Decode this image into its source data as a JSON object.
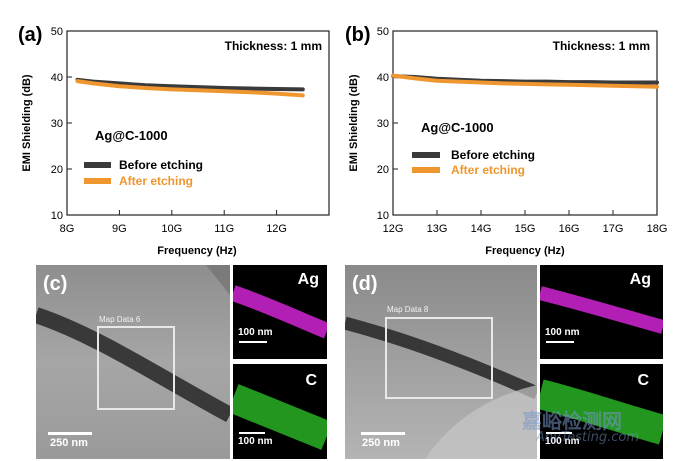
{
  "chart_data": [
    {
      "panel": "(a)",
      "type": "line",
      "annotation_top": "Thickness: 1 mm",
      "annotation_sample": "Ag@C-1000",
      "xlabel": "Frequency (Hz)",
      "ylabel": "EMI Shielding (dB)",
      "xlim": [
        8,
        13
      ],
      "ylim": [
        10,
        50
      ],
      "xticks": [
        8,
        9,
        10,
        11,
        12
      ],
      "xticklabels": [
        "8G",
        "9G",
        "10G",
        "11G",
        "12G"
      ],
      "yticks": [
        10,
        20,
        30,
        40,
        50
      ],
      "yticklabels": [
        "10",
        "20",
        "30",
        "40",
        "50"
      ],
      "grid": false,
      "legend_placement": "center-left",
      "series": [
        {
          "name": "Before etching",
          "color": "#3a3a3a",
          "x": [
            8.2,
            8.5,
            9.0,
            9.5,
            10.0,
            10.5,
            11.0,
            11.5,
            12.0,
            12.5
          ],
          "y": [
            39.4,
            39.0,
            38.6,
            38.2,
            38.0,
            37.8,
            37.6,
            37.5,
            37.4,
            37.3
          ]
        },
        {
          "name": "After etching",
          "color": "#f0962e",
          "x": [
            8.2,
            8.5,
            9.0,
            9.5,
            10.0,
            10.5,
            11.0,
            11.5,
            12.0,
            12.5
          ],
          "y": [
            39.1,
            38.6,
            38.0,
            37.6,
            37.3,
            37.1,
            36.9,
            36.7,
            36.4,
            36.0
          ]
        }
      ]
    },
    {
      "panel": "(b)",
      "type": "line",
      "annotation_top": "Thickness: 1 mm",
      "annotation_sample": "Ag@C-1000",
      "xlabel": "Frequency (Hz)",
      "ylabel": "EMI Shielding (dB)",
      "xlim": [
        12,
        18
      ],
      "ylim": [
        10,
        50
      ],
      "xticks": [
        12,
        13,
        14,
        15,
        16,
        17,
        18
      ],
      "xticklabels": [
        "12G",
        "13G",
        "14G",
        "15G",
        "16G",
        "17G",
        "18G"
      ],
      "yticks": [
        10,
        20,
        30,
        40,
        50
      ],
      "yticklabels": [
        "10",
        "20",
        "30",
        "40",
        "50"
      ],
      "grid": false,
      "legend_placement": "center-left",
      "series": [
        {
          "name": "Before etching",
          "color": "#3a3a3a",
          "x": [
            12.0,
            12.5,
            13.0,
            13.5,
            14.0,
            14.5,
            15.0,
            15.5,
            16.0,
            16.5,
            17.0,
            17.5,
            18.0
          ],
          "y": [
            40.2,
            40.0,
            39.6,
            39.4,
            39.2,
            39.1,
            39.0,
            39.0,
            38.9,
            38.9,
            38.8,
            38.8,
            38.8
          ]
        },
        {
          "name": "After etching",
          "color": "#f0962e",
          "x": [
            12.0,
            12.5,
            13.0,
            13.5,
            14.0,
            14.5,
            15.0,
            15.5,
            16.0,
            16.5,
            17.0,
            17.5,
            18.0
          ],
          "y": [
            40.3,
            39.7,
            39.2,
            39.0,
            38.8,
            38.6,
            38.5,
            38.4,
            38.3,
            38.2,
            38.1,
            38.0,
            37.9
          ]
        }
      ]
    }
  ],
  "micrographs": [
    {
      "panel": "(c)",
      "map_box_label": "Map Data 6",
      "scale_main": "250 nm",
      "maps": [
        {
          "element": "Ag",
          "scale": "100 nm",
          "color": "#d024d4"
        },
        {
          "element": "C",
          "scale": "100 nm",
          "color": "#2ec82a"
        }
      ]
    },
    {
      "panel": "(d)",
      "map_box_label": "Map Data 8",
      "scale_main": "250 nm",
      "maps": [
        {
          "element": "Ag",
          "scale": "100 nm",
          "color": "#d024d4"
        },
        {
          "element": "C",
          "scale": "100 nm",
          "color": "#2ec82a"
        }
      ]
    }
  ],
  "watermark": {
    "cn": "嘉峪检测网",
    "en": "AnyTesting.com"
  }
}
